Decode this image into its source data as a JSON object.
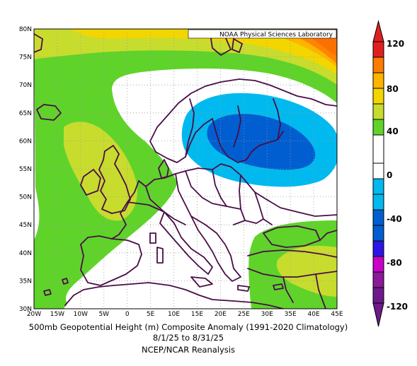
{
  "map": {
    "credit": "NOAA Physical Sciences Laboratory",
    "lon_labels": [
      "20W",
      "15W",
      "10W",
      "5W",
      "0",
      "5E",
      "10E",
      "15E",
      "20E",
      "25E",
      "30E",
      "35E",
      "40E",
      "45E"
    ],
    "lat_labels": [
      "30N",
      "35N",
      "40N",
      "45N",
      "50N",
      "55N",
      "60N",
      "65N",
      "70N",
      "75N",
      "80N"
    ],
    "lon_range": [
      -20,
      45
    ],
    "lat_range": [
      30,
      80
    ]
  },
  "colorbar": {
    "labels": [
      "120",
      "80",
      "40",
      "0",
      "-40",
      "-80",
      "-120"
    ],
    "colors": [
      "#a30000",
      "#ff7b00",
      "#f3d600",
      "#5fd32a",
      "#ffffff",
      "#00b9ee",
      "#005ed0",
      "#2d16e3",
      "#c800c8",
      "#6e1a8a",
      "#e53a00",
      "#ffb400",
      "#c8dc2e"
    ]
  },
  "caption": {
    "line1": "500mb Geopotential Height (m) Composite Anomaly (1991-2020 Climatology)",
    "line2": "8/1/25 to 8/31/25",
    "line3": "NCEP/NCAR Reanalysis"
  }
}
